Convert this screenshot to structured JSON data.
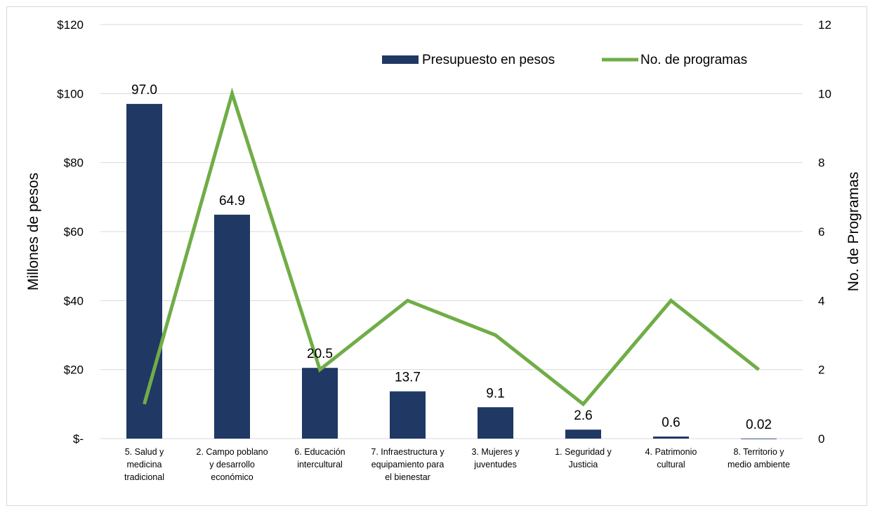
{
  "chart_data": {
    "type": "bar",
    "categories": [
      [
        "5. Salud y",
        "medicina",
        "tradicional"
      ],
      [
        "2. Campo poblano",
        "y desarrollo",
        "económico"
      ],
      [
        "6. Educación",
        "intercultural"
      ],
      [
        "7. Infraestructura y",
        "equipamiento para",
        "el bienestar"
      ],
      [
        "3. Mujeres y",
        "juventudes"
      ],
      [
        "1. Seguridad y",
        "Justicia"
      ],
      [
        "4. Patrimonio",
        "cultural"
      ],
      [
        "8. Territorio y",
        "medio ambiente"
      ]
    ],
    "series": [
      {
        "name": "Presupuesto en pesos",
        "type": "bar",
        "axis": "left",
        "color": "#203864",
        "values": [
          97.0,
          64.9,
          20.5,
          13.7,
          9.1,
          2.6,
          0.6,
          0.02
        ],
        "labels": [
          "97.0",
          "64.9",
          "20.5",
          "13.7",
          "9.1",
          "2.6",
          "0.6",
          "0.02"
        ]
      },
      {
        "name": "No. de programas",
        "type": "line",
        "axis": "right",
        "color": "#70ad47",
        "values": [
          1,
          10,
          2,
          4,
          3,
          1,
          4,
          2
        ]
      }
    ],
    "y_left": {
      "label": "Millones de pesos",
      "range": [
        0,
        120
      ],
      "ticks": [
        0,
        20,
        40,
        60,
        80,
        100,
        120
      ],
      "tick_labels": [
        "$-",
        "$20",
        "$40",
        "$60",
        "$80",
        "$100",
        "$120"
      ]
    },
    "y_right": {
      "label": "No. de Programas",
      "range": [
        0,
        12
      ],
      "ticks": [
        0,
        2,
        4,
        6,
        8,
        10,
        12
      ],
      "tick_labels": [
        "0",
        "2",
        "4",
        "6",
        "8",
        "10",
        "12"
      ]
    },
    "grid": true,
    "legend": "top-right",
    "gridline_color": "#d9d9d9"
  }
}
